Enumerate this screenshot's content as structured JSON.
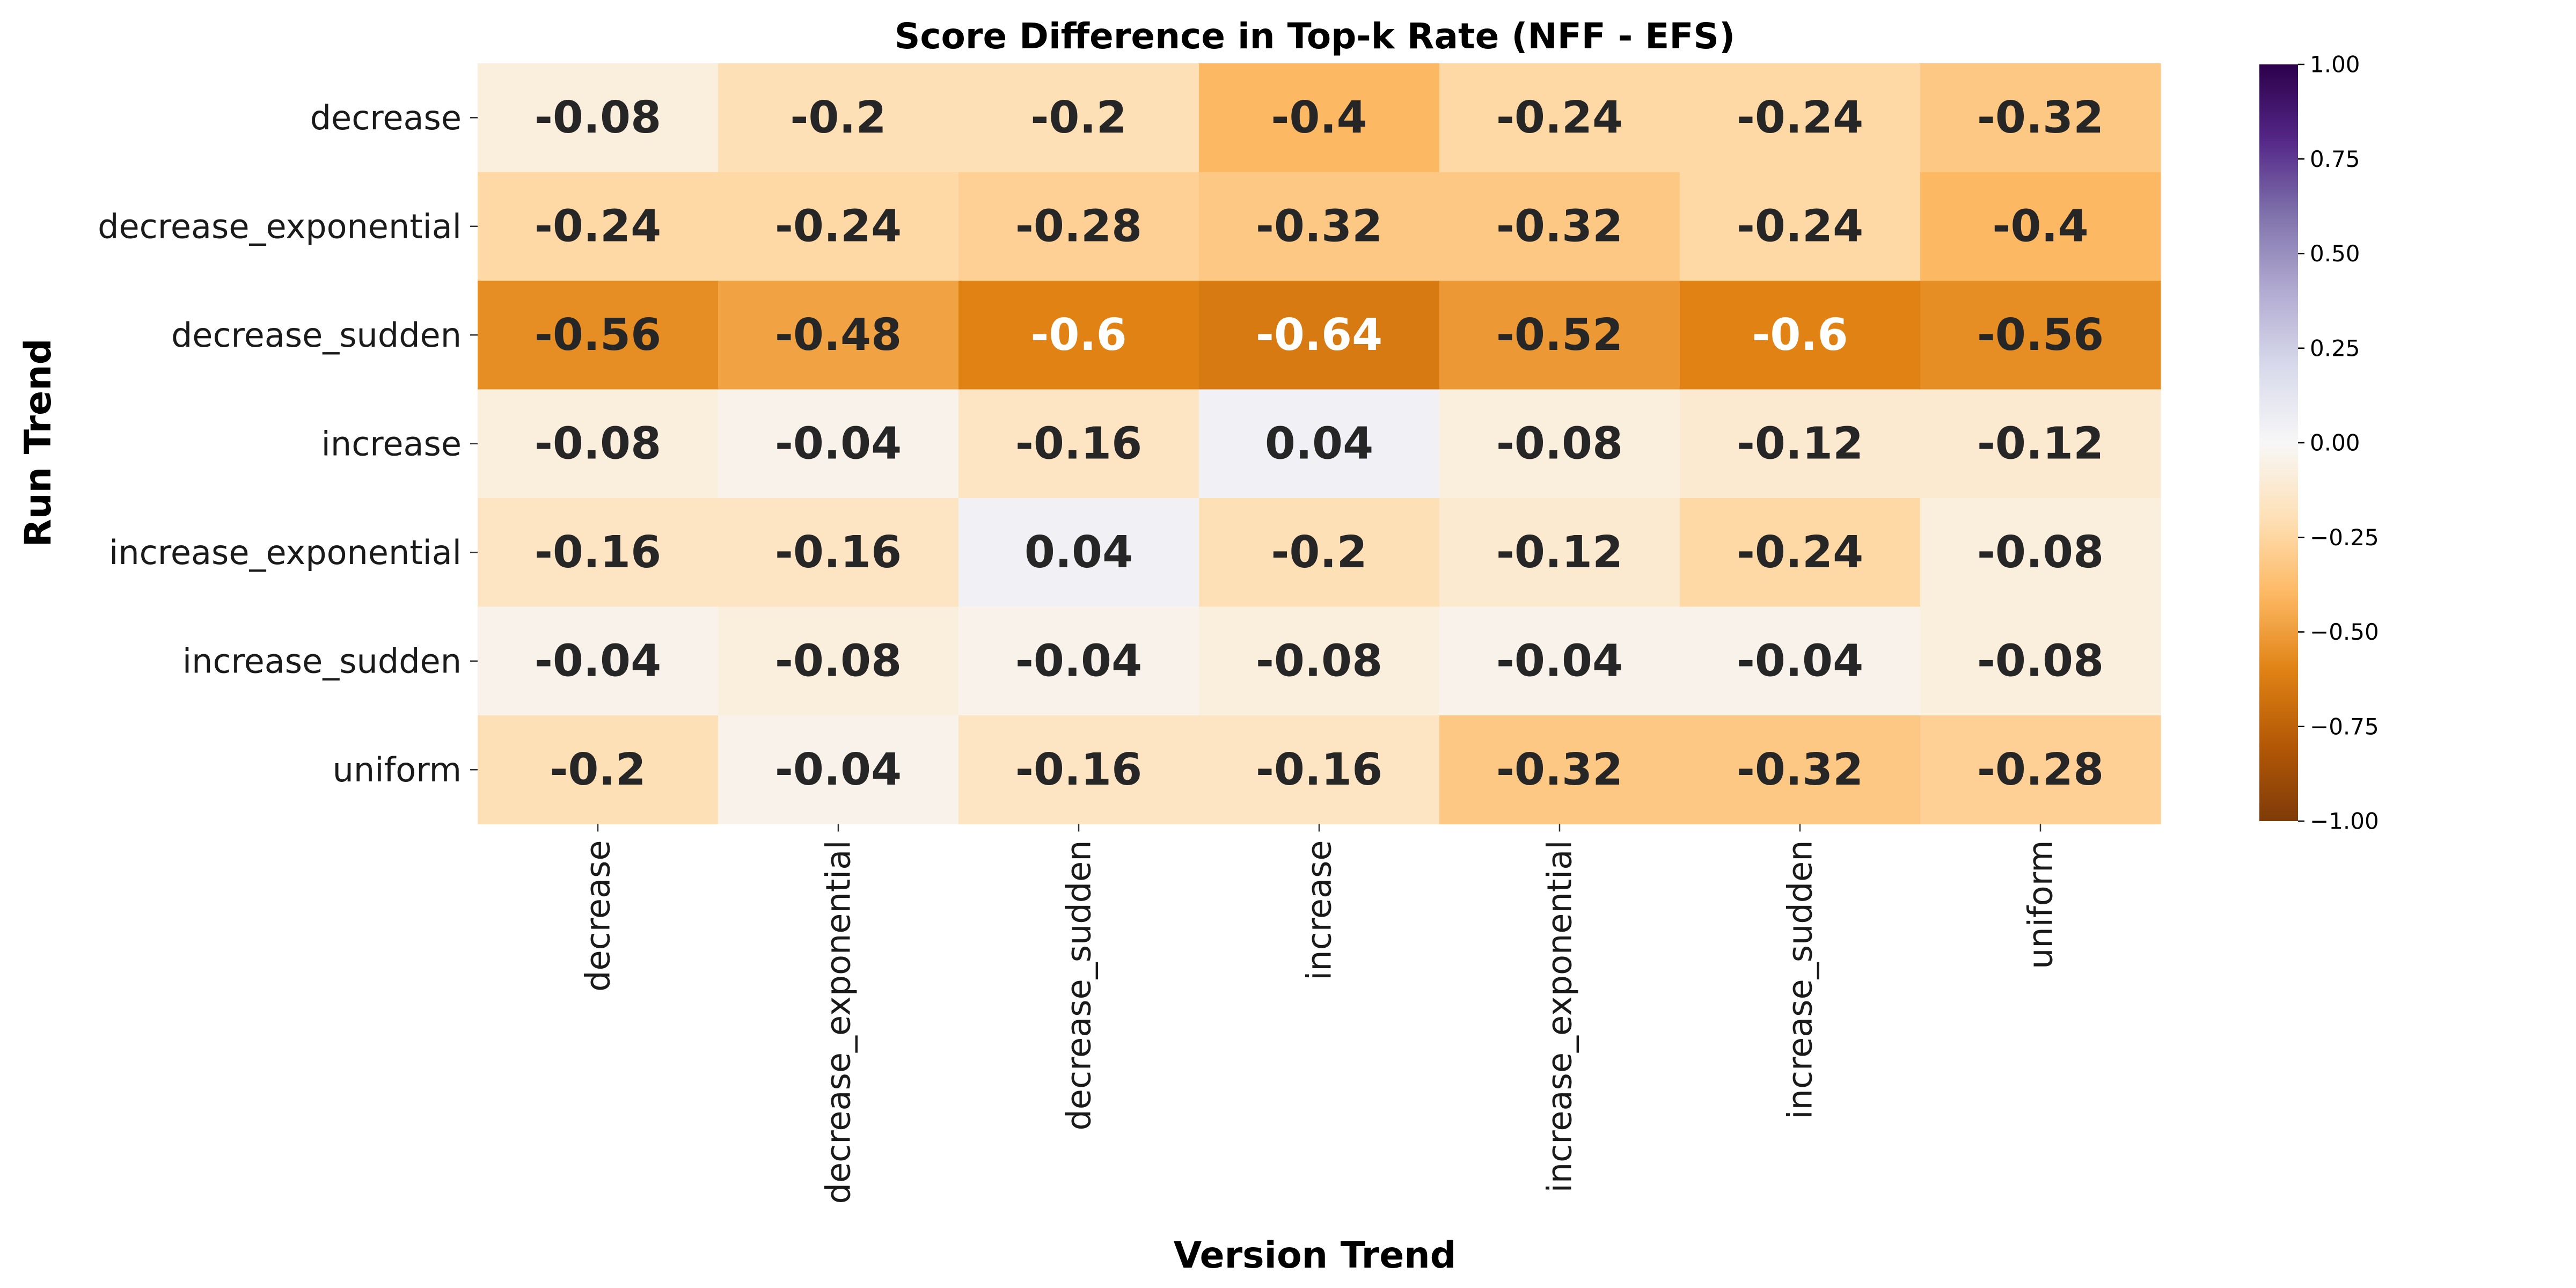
{
  "chart_data": {
    "type": "heatmap",
    "title": "Score Difference in Top-k Rate (NFF - EFS)",
    "xlabel": "Version Trend",
    "ylabel": "Run Trend",
    "x_categories": [
      "decrease",
      "decrease_exponential",
      "decrease_sudden",
      "increase",
      "increase_exponential",
      "increase_sudden",
      "uniform"
    ],
    "y_categories": [
      "decrease",
      "decrease_exponential",
      "decrease_sudden",
      "increase",
      "increase_exponential",
      "increase_sudden",
      "uniform"
    ],
    "values": [
      [
        -0.08,
        -0.2,
        -0.2,
        -0.4,
        -0.24,
        -0.24,
        -0.32
      ],
      [
        -0.24,
        -0.24,
        -0.28,
        -0.32,
        -0.32,
        -0.24,
        -0.4
      ],
      [
        -0.56,
        -0.48,
        -0.6,
        -0.64,
        -0.52,
        -0.6,
        -0.56
      ],
      [
        -0.08,
        -0.04,
        -0.16,
        0.04,
        -0.08,
        -0.12,
        -0.12
      ],
      [
        -0.16,
        -0.16,
        0.04,
        -0.2,
        -0.12,
        -0.24,
        -0.08
      ],
      [
        -0.04,
        -0.08,
        -0.04,
        -0.08,
        -0.04,
        -0.04,
        -0.08
      ],
      [
        -0.2,
        -0.04,
        -0.16,
        -0.16,
        -0.32,
        -0.32,
        -0.28
      ]
    ],
    "labels": [
      [
        "-0.08",
        "-0.2",
        "-0.2",
        "-0.4",
        "-0.24",
        "-0.24",
        "-0.32"
      ],
      [
        "-0.24",
        "-0.24",
        "-0.28",
        "-0.32",
        "-0.32",
        "-0.24",
        "-0.4"
      ],
      [
        "-0.56",
        "-0.48",
        "-0.6",
        "-0.64",
        "-0.52",
        "-0.6",
        "-0.56"
      ],
      [
        "-0.08",
        "-0.04",
        "-0.16",
        "0.04",
        "-0.08",
        "-0.12",
        "-0.12"
      ],
      [
        "-0.16",
        "-0.16",
        "0.04",
        "-0.2",
        "-0.12",
        "-0.24",
        "-0.08"
      ],
      [
        "-0.04",
        "-0.08",
        "-0.04",
        "-0.08",
        "-0.04",
        "-0.04",
        "-0.08"
      ],
      [
        "-0.2",
        "-0.04",
        "-0.16",
        "-0.16",
        "-0.32",
        "-0.32",
        "-0.28"
      ]
    ],
    "colormap": "PuOr",
    "vmin": -1.0,
    "vmax": 1.0,
    "colorbar_ticks": [
      1.0,
      0.75,
      0.5,
      0.25,
      0.0,
      -0.25,
      -0.5,
      -0.75,
      -1.0
    ],
    "colorbar_tick_labels": [
      "1.00",
      "0.75",
      "0.50",
      "0.25",
      "0.00",
      "−0.25",
      "−0.50",
      "−0.75",
      "−1.00"
    ],
    "colormap_stops": [
      "#7f3b08",
      "#b35806",
      "#e08214",
      "#fdb863",
      "#fee0b6",
      "#f7f7f7",
      "#d8daeb",
      "#b2abd2",
      "#8073ac",
      "#542788",
      "#2d004b"
    ],
    "grid": false,
    "colorbar_position": "right"
  }
}
